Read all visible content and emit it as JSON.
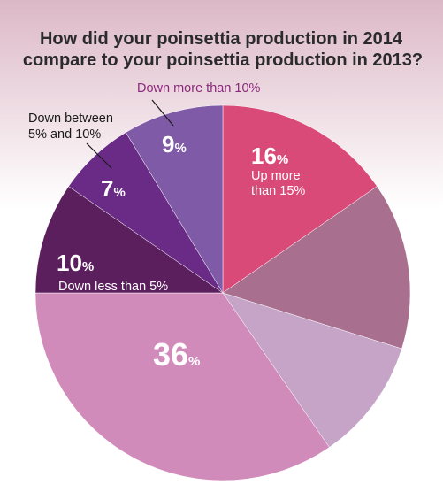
{
  "title_lines": [
    "How did your poinsettia production in 2014",
    "compare to your poinsettia production in 2013?"
  ],
  "chart_data": {
    "type": "pie",
    "title": "How did your poinsettia production in 2014 compare to your poinsettia production in 2013?",
    "slices": [
      {
        "label": "Up more than 15%",
        "value": 16,
        "pct_text": "16",
        "color": "#d94a78"
      },
      {
        "label": "",
        "value": 15,
        "pct_text": "",
        "color": "#a86f8f"
      },
      {
        "label": "",
        "value": 11,
        "pct_text": "",
        "color": "#c5a4c8"
      },
      {
        "label": "",
        "value": 36,
        "pct_text": "36",
        "color": "#d18bba"
      },
      {
        "label": "Down less than 5%",
        "value": 10,
        "pct_text": "10",
        "color": "#5a1f5c"
      },
      {
        "label": "Down between 5% and 10%",
        "value": 7,
        "pct_text": "7",
        "color": "#6a2b86"
      },
      {
        "label": "Down more than 10%",
        "value": 9,
        "pct_text": "9",
        "color": "#7f5aa6"
      }
    ],
    "percent_suffix": "%",
    "labels": {
      "up_more_line1": "Up more",
      "up_more_line2": "than 15%",
      "down_less": "Down less than 5%",
      "down_between_line1": "Down between",
      "down_between_line2": "5% and 10%",
      "down_more": "Down more than 10%"
    }
  }
}
